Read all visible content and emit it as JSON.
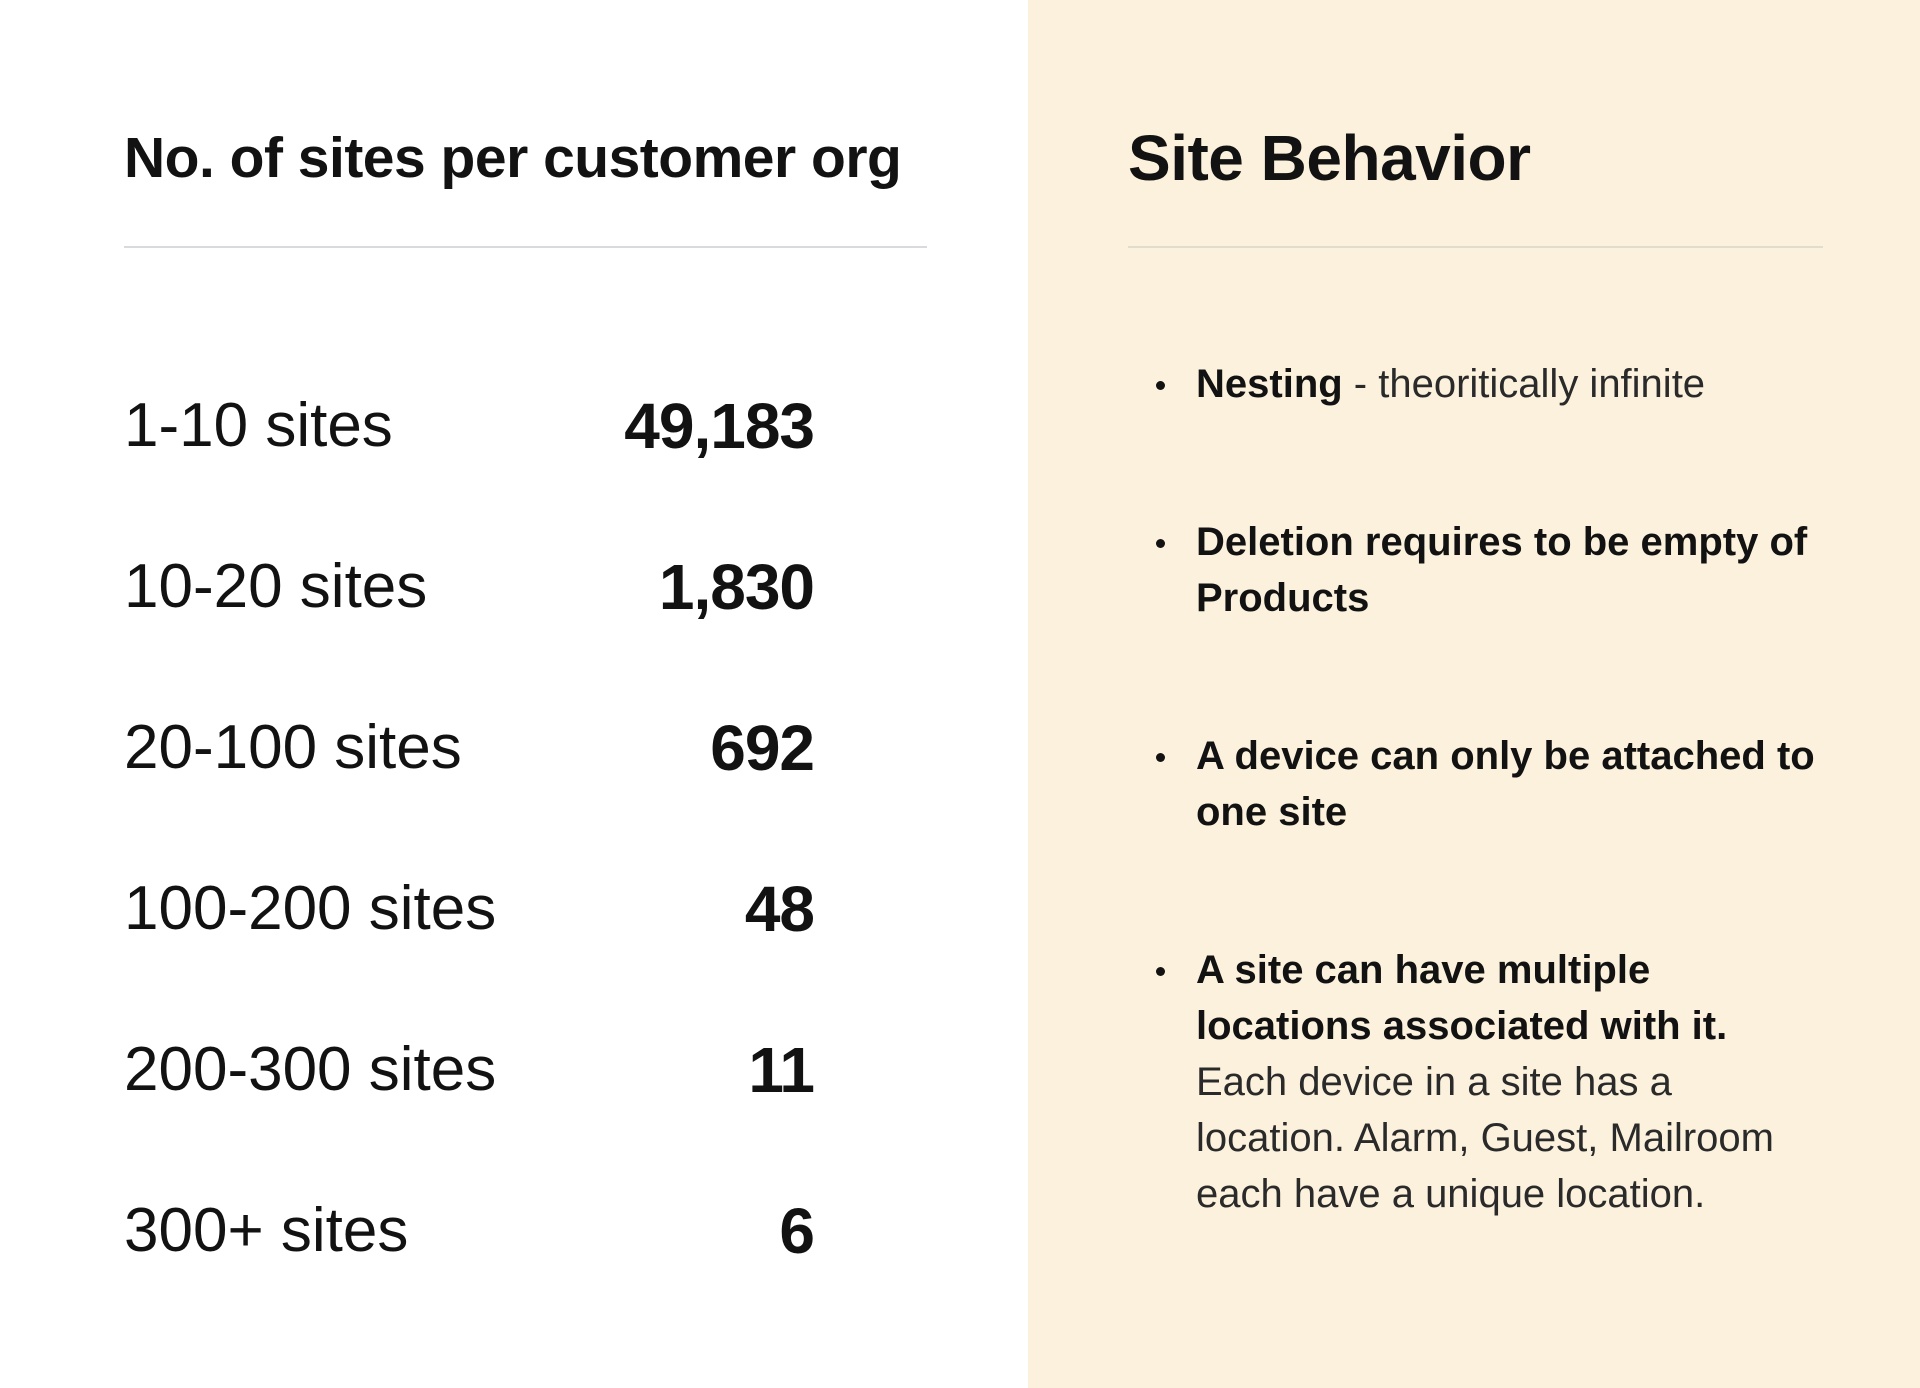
{
  "left": {
    "title": "No. of sites per customer org",
    "rows": [
      {
        "label": "1-10 sites",
        "value": "49,183"
      },
      {
        "label": "10-20 sites",
        "value": "1,830"
      },
      {
        "label": "20-100 sites",
        "value": "692"
      },
      {
        "label": "100-200 sites",
        "value": "48"
      },
      {
        "label": "200-300 sites",
        "value": "11"
      },
      {
        "label": "300+ sites",
        "value": "6"
      }
    ]
  },
  "right": {
    "title": "Site Behavior",
    "bullets": [
      {
        "bold": "Nesting",
        "sep": " - ",
        "light": "theoritically infinite"
      },
      {
        "bold": "Deletion requires to be empty of Products"
      },
      {
        "bold": "A device can only be attached to one site"
      },
      {
        "bold": "A site can have multiple locations associated with it.",
        "light": "Each device in a site has a location. Alarm, Guest, Mailroom each have a unique location."
      }
    ]
  },
  "colors": {
    "right_background": "#fbf1dc",
    "text": "#121212",
    "divider": "#d9dade"
  }
}
